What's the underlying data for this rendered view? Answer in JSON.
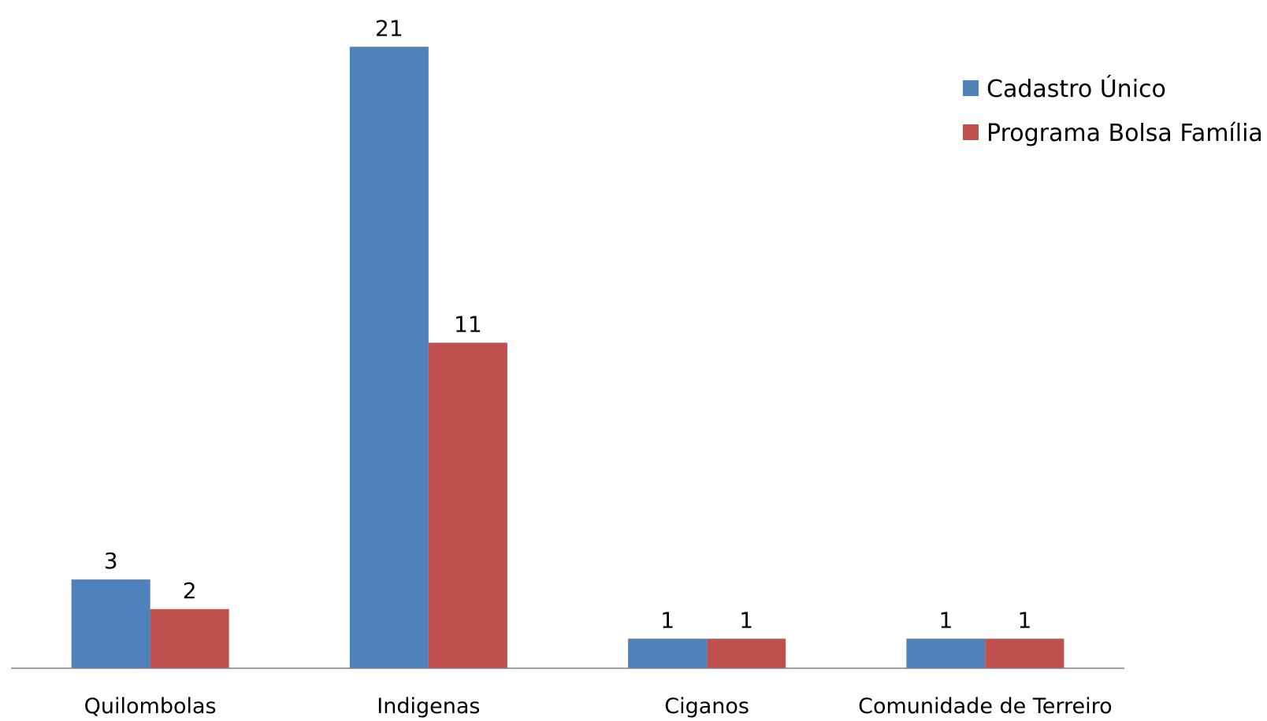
{
  "chart_data": {
    "type": "bar",
    "categories": [
      "Quilombolas",
      "Indigenas",
      "Ciganos",
      "Comunidade de Terreiro"
    ],
    "series": [
      {
        "name": "Cadastro Único",
        "values": [
          3,
          21,
          1,
          1
        ],
        "color": "#4F81BD"
      },
      {
        "name": "Programa Bolsa Família",
        "values": [
          2,
          11,
          1,
          1
        ],
        "color": "#C0504D"
      }
    ],
    "title": "",
    "xlabel": "",
    "ylabel": "",
    "ylim": [
      0,
      21
    ],
    "grid": false,
    "legend": "top-right",
    "data_labels": true,
    "axis_color": "#808080"
  }
}
